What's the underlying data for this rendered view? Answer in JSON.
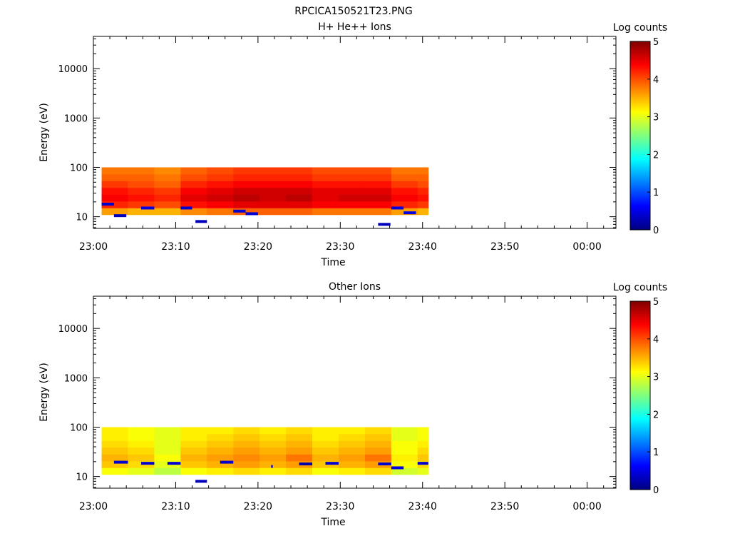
{
  "page": {
    "title": "RPCICA150521T23.PNG"
  },
  "colorbar": {
    "label": "Log counts",
    "ticks": [
      "0",
      "1",
      "2",
      "3",
      "4",
      "5"
    ],
    "stops": [
      "#00007f",
      "#0000ff",
      "#007fff",
      "#00ffff",
      "#7fff7f",
      "#ffff00",
      "#ff7f00",
      "#ff0000",
      "#7f0000"
    ]
  },
  "chart_data": [
    {
      "type": "heatmap",
      "title": "H+ He++ Ions",
      "xlabel": "Time",
      "ylabel": "Energy (eV)",
      "xticks": [
        "23:00",
        "23:10",
        "23:20",
        "23:30",
        "23:40",
        "23:50",
        "00:00"
      ],
      "xlim_minutes": [
        0,
        63.5
      ],
      "yscale": "log",
      "ylim": [
        5.8,
        45000
      ],
      "yticks": [
        {
          "value": 10,
          "label": "10"
        },
        {
          "value": 100,
          "label": "100"
        },
        {
          "value": 1000,
          "label": "1000"
        },
        {
          "value": 10000,
          "label": "10000"
        }
      ],
      "zlim": [
        0,
        5
      ],
      "time_bins": [
        {
          "t0": 1.0,
          "t1": 4.2,
          "log_counts": [
            3.2,
            3.6,
            4.2,
            4.4,
            4.3,
            4.1,
            3.9,
            3.8
          ]
        },
        {
          "t0": 4.2,
          "t1": 7.4,
          "log_counts": [
            3.2,
            3.5,
            4.1,
            4.3,
            4.2,
            4.0,
            3.9,
            3.8
          ]
        },
        {
          "t0": 7.4,
          "t1": 10.6,
          "log_counts": [
            3.2,
            3.5,
            4.0,
            4.2,
            4.1,
            3.9,
            3.8,
            3.7
          ]
        },
        {
          "t0": 10.6,
          "t1": 13.8,
          "log_counts": [
            3.3,
            3.7,
            4.3,
            4.5,
            4.4,
            4.2,
            4.0,
            3.9
          ]
        },
        {
          "t0": 13.8,
          "t1": 17.0,
          "log_counts": [
            3.3,
            3.8,
            4.4,
            4.6,
            4.5,
            4.3,
            4.1,
            4.0
          ]
        },
        {
          "t0": 17.0,
          "t1": 20.2,
          "log_counts": [
            3.4,
            3.9,
            4.5,
            4.7,
            4.6,
            4.4,
            4.2,
            4.1
          ]
        },
        {
          "t0": 20.2,
          "t1": 23.4,
          "log_counts": [
            3.4,
            3.9,
            4.5,
            4.6,
            4.6,
            4.4,
            4.2,
            4.1
          ]
        },
        {
          "t0": 23.4,
          "t1": 26.6,
          "log_counts": [
            3.4,
            3.9,
            4.5,
            4.7,
            4.6,
            4.4,
            4.2,
            4.1
          ]
        },
        {
          "t0": 26.6,
          "t1": 29.8,
          "log_counts": [
            3.3,
            3.8,
            4.4,
            4.5,
            4.5,
            4.3,
            4.1,
            4.0
          ]
        },
        {
          "t0": 29.8,
          "t1": 33.0,
          "log_counts": [
            3.3,
            3.8,
            4.4,
            4.6,
            4.5,
            4.3,
            4.1,
            4.0
          ]
        },
        {
          "t0": 33.0,
          "t1": 36.2,
          "log_counts": [
            3.3,
            3.8,
            4.4,
            4.6,
            4.5,
            4.3,
            4.1,
            4.0
          ]
        },
        {
          "t0": 36.2,
          "t1": 39.4,
          "log_counts": [
            3.2,
            3.6,
            4.2,
            4.4,
            4.3,
            4.1,
            3.9,
            3.8
          ]
        },
        {
          "t0": 39.4,
          "t1": 40.7,
          "log_counts": [
            3.2,
            3.5,
            4.1,
            4.3,
            4.2,
            4.0,
            3.9,
            3.8
          ]
        }
      ],
      "sparse_points": [
        {
          "t0": 1.0,
          "t1": 2.5,
          "energy": 18,
          "log_counts": 0.4
        },
        {
          "t0": 2.5,
          "t1": 4.0,
          "energy": 10.5,
          "log_counts": 0.3
        },
        {
          "t0": 5.8,
          "t1": 7.4,
          "energy": 15,
          "log_counts": 0.5
        },
        {
          "t0": 10.6,
          "t1": 12.0,
          "energy": 15,
          "log_counts": 0.4
        },
        {
          "t0": 12.4,
          "t1": 13.8,
          "energy": 8,
          "log_counts": 0.3
        },
        {
          "t0": 17.0,
          "t1": 18.5,
          "energy": 13,
          "log_counts": 0.4
        },
        {
          "t0": 18.5,
          "t1": 20.0,
          "energy": 11.5,
          "log_counts": 0.4
        },
        {
          "t0": 34.6,
          "t1": 36.1,
          "energy": 7,
          "log_counts": 0.3
        },
        {
          "t0": 36.2,
          "t1": 37.7,
          "energy": 15,
          "log_counts": 0.5
        },
        {
          "t0": 37.7,
          "t1": 39.2,
          "energy": 12,
          "log_counts": 0.5
        }
      ]
    },
    {
      "type": "heatmap",
      "title": "Other Ions",
      "xlabel": "Time",
      "ylabel": "Energy (eV)",
      "xticks": [
        "23:00",
        "23:10",
        "23:20",
        "23:30",
        "23:40",
        "23:50",
        "00:00"
      ],
      "xlim_minutes": [
        0,
        63.5
      ],
      "yscale": "log",
      "ylim": [
        5.8,
        45000
      ],
      "yticks": [
        {
          "value": 10,
          "label": "10"
        },
        {
          "value": 100,
          "label": "100"
        },
        {
          "value": 1000,
          "label": "1000"
        },
        {
          "value": 10000,
          "label": "10000"
        }
      ],
      "zlim": [
        0,
        5
      ],
      "time_bins": [
        {
          "t0": 1.0,
          "t1": 4.2,
          "log_counts": [
            2.4,
            3.1,
            3.4,
            3.5,
            3.4,
            3.3,
            3.2,
            3.2
          ]
        },
        {
          "t0": 4.2,
          "t1": 7.4,
          "log_counts": [
            2.4,
            3.0,
            3.3,
            3.4,
            3.3,
            3.2,
            3.1,
            3.1
          ]
        },
        {
          "t0": 7.4,
          "t1": 10.6,
          "log_counts": [
            2.3,
            2.8,
            3.0,
            3.1,
            3.0,
            3.0,
            3.0,
            3.0
          ]
        },
        {
          "t0": 10.6,
          "t1": 13.8,
          "log_counts": [
            2.4,
            3.1,
            3.4,
            3.5,
            3.4,
            3.3,
            3.2,
            3.2
          ]
        },
        {
          "t0": 13.8,
          "t1": 17.0,
          "log_counts": [
            2.4,
            3.2,
            3.5,
            3.6,
            3.5,
            3.4,
            3.3,
            3.2
          ]
        },
        {
          "t0": 17.0,
          "t1": 20.2,
          "log_counts": [
            2.5,
            3.3,
            3.6,
            3.7,
            3.6,
            3.5,
            3.4,
            3.3
          ]
        },
        {
          "t0": 20.2,
          "t1": 23.4,
          "log_counts": [
            2.4,
            3.2,
            3.5,
            3.6,
            3.5,
            3.4,
            3.3,
            3.2
          ]
        },
        {
          "t0": 23.4,
          "t1": 26.6,
          "log_counts": [
            2.5,
            3.3,
            3.6,
            3.8,
            3.6,
            3.5,
            3.4,
            3.3
          ]
        },
        {
          "t0": 26.6,
          "t1": 29.8,
          "log_counts": [
            2.4,
            3.1,
            3.4,
            3.5,
            3.4,
            3.3,
            3.2,
            3.2
          ]
        },
        {
          "t0": 29.8,
          "t1": 33.0,
          "log_counts": [
            2.4,
            3.2,
            3.5,
            3.6,
            3.5,
            3.4,
            3.3,
            3.2
          ]
        },
        {
          "t0": 33.0,
          "t1": 36.2,
          "log_counts": [
            2.5,
            3.3,
            3.6,
            3.8,
            3.6,
            3.5,
            3.4,
            3.3
          ]
        },
        {
          "t0": 36.2,
          "t1": 39.4,
          "log_counts": [
            2.3,
            2.9,
            3.1,
            3.2,
            3.1,
            3.1,
            3.0,
            3.0
          ]
        },
        {
          "t0": 39.4,
          "t1": 40.7,
          "log_counts": [
            2.4,
            3.0,
            3.3,
            3.4,
            3.3,
            3.2,
            3.1,
            3.1
          ]
        }
      ],
      "sparse_points": [
        {
          "t0": 2.5,
          "t1": 4.2,
          "energy": 19.5,
          "log_counts": 0.4
        },
        {
          "t0": 5.8,
          "t1": 7.4,
          "energy": 18.5,
          "log_counts": 0.4
        },
        {
          "t0": 9.0,
          "t1": 10.6,
          "energy": 18.5,
          "log_counts": 0.4
        },
        {
          "t0": 12.4,
          "t1": 13.8,
          "energy": 8,
          "log_counts": 0.3
        },
        {
          "t0": 15.4,
          "t1": 17.0,
          "energy": 19.5,
          "log_counts": 0.4
        },
        {
          "t0": 21.6,
          "t1": 21.8,
          "energy": 16,
          "log_counts": 0.5
        },
        {
          "t0": 25.0,
          "t1": 26.6,
          "energy": 18,
          "log_counts": 0.2
        },
        {
          "t0": 28.2,
          "t1": 29.8,
          "energy": 18.5,
          "log_counts": 0.4
        },
        {
          "t0": 34.6,
          "t1": 36.2,
          "energy": 18,
          "log_counts": 0.4
        },
        {
          "t0": 36.2,
          "t1": 37.7,
          "energy": 15,
          "log_counts": 0.5
        },
        {
          "t0": 39.4,
          "t1": 40.7,
          "energy": 18.5,
          "log_counts": 0.4
        }
      ]
    }
  ]
}
